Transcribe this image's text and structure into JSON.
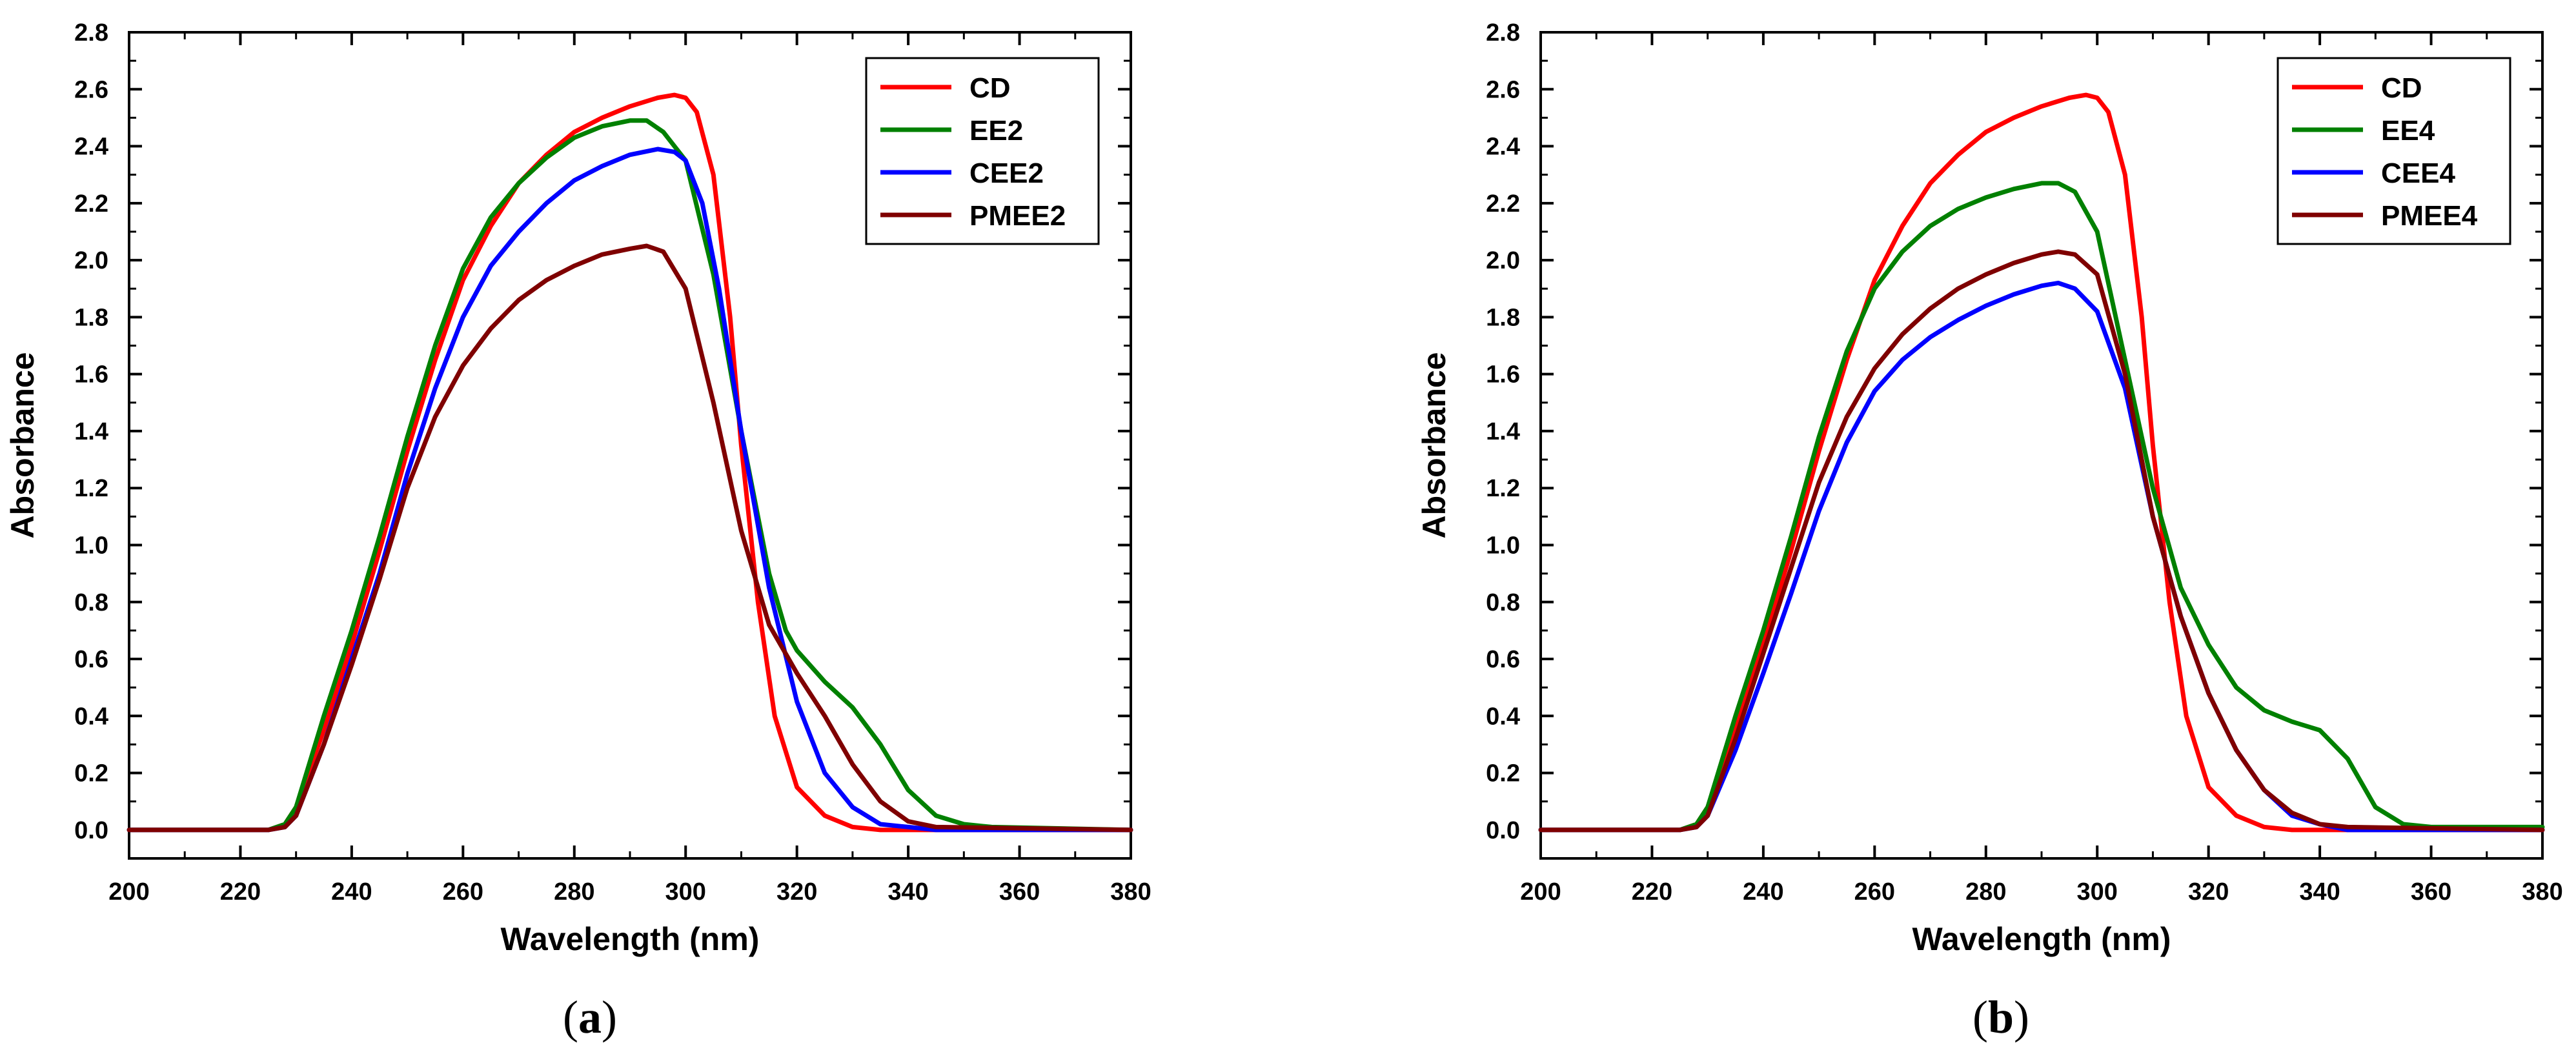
{
  "chart_data": [
    {
      "type": "line",
      "caption": "(a)",
      "caption_letter": "a",
      "xlabel": "Wavelength (nm)",
      "ylabel": "Absorbance",
      "xlim": [
        200,
        380
      ],
      "ylim": [
        -0.1,
        2.8
      ],
      "xticks": [
        200,
        220,
        240,
        260,
        280,
        300,
        320,
        340,
        360,
        380
      ],
      "yticks": [
        0.0,
        0.2,
        0.4,
        0.6,
        0.8,
        1.0,
        1.2,
        1.4,
        1.6,
        1.8,
        2.0,
        2.2,
        2.4,
        2.6,
        2.8
      ],
      "legend_position": "top-right",
      "series": [
        {
          "name": "CD",
          "color": "#ff0000",
          "x": [
            200,
            225,
            228,
            230,
            235,
            240,
            245,
            250,
            255,
            260,
            265,
            270,
            275,
            280,
            285,
            290,
            295,
            298,
            300,
            302,
            305,
            308,
            310,
            313,
            316,
            320,
            325,
            330,
            335,
            340,
            345,
            350,
            380
          ],
          "y": [
            0,
            0,
            0.02,
            0.08,
            0.35,
            0.65,
            0.98,
            1.33,
            1.65,
            1.93,
            2.12,
            2.27,
            2.37,
            2.45,
            2.5,
            2.54,
            2.57,
            2.58,
            2.57,
            2.52,
            2.3,
            1.8,
            1.35,
            0.8,
            0.4,
            0.15,
            0.05,
            0.01,
            0,
            0,
            0,
            0,
            0
          ]
        },
        {
          "name": "EE2",
          "color": "#008000",
          "x": [
            200,
            225,
            228,
            230,
            235,
            240,
            245,
            250,
            255,
            260,
            265,
            270,
            275,
            280,
            285,
            290,
            293,
            296,
            300,
            305,
            310,
            315,
            318,
            320,
            325,
            330,
            335,
            340,
            345,
            350,
            355,
            380
          ],
          "y": [
            0,
            0,
            0.02,
            0.08,
            0.4,
            0.7,
            1.03,
            1.38,
            1.7,
            1.97,
            2.15,
            2.27,
            2.36,
            2.43,
            2.47,
            2.49,
            2.49,
            2.45,
            2.35,
            1.95,
            1.4,
            0.9,
            0.7,
            0.63,
            0.52,
            0.43,
            0.3,
            0.14,
            0.05,
            0.02,
            0.01,
            0
          ]
        },
        {
          "name": "CEE2",
          "color": "#0000ff",
          "x": [
            200,
            225,
            228,
            230,
            235,
            240,
            245,
            250,
            255,
            260,
            265,
            270,
            275,
            280,
            285,
            290,
            295,
            298,
            300,
            303,
            306,
            310,
            315,
            320,
            325,
            330,
            335,
            340,
            345,
            380
          ],
          "y": [
            0,
            0,
            0.01,
            0.05,
            0.3,
            0.6,
            0.9,
            1.25,
            1.55,
            1.8,
            1.98,
            2.1,
            2.2,
            2.28,
            2.33,
            2.37,
            2.39,
            2.38,
            2.35,
            2.2,
            1.9,
            1.4,
            0.85,
            0.45,
            0.2,
            0.08,
            0.02,
            0.01,
            0,
            0
          ]
        },
        {
          "name": "PMEE2",
          "color": "#7f0000",
          "x": [
            200,
            225,
            228,
            230,
            235,
            240,
            245,
            250,
            255,
            260,
            265,
            270,
            275,
            280,
            285,
            290,
            293,
            296,
            300,
            305,
            310,
            315,
            320,
            325,
            330,
            335,
            340,
            345,
            380
          ],
          "y": [
            0,
            0,
            0.01,
            0.05,
            0.3,
            0.58,
            0.88,
            1.2,
            1.45,
            1.63,
            1.76,
            1.86,
            1.93,
            1.98,
            2.02,
            2.04,
            2.05,
            2.03,
            1.9,
            1.5,
            1.05,
            0.72,
            0.55,
            0.4,
            0.23,
            0.1,
            0.03,
            0.01,
            0
          ]
        }
      ]
    },
    {
      "type": "line",
      "caption": "(b)",
      "caption_letter": "b",
      "xlabel": "Wavelength (nm)",
      "ylabel": "Absorbance",
      "xlim": [
        200,
        380
      ],
      "ylim": [
        -0.1,
        2.8
      ],
      "xticks": [
        200,
        220,
        240,
        260,
        280,
        300,
        320,
        340,
        360,
        380
      ],
      "yticks": [
        0.0,
        0.2,
        0.4,
        0.6,
        0.8,
        1.0,
        1.2,
        1.4,
        1.6,
        1.8,
        2.0,
        2.2,
        2.4,
        2.6,
        2.8
      ],
      "legend_position": "top-right",
      "series": [
        {
          "name": "CD",
          "color": "#ff0000",
          "x": [
            200,
            225,
            228,
            230,
            235,
            240,
            245,
            250,
            255,
            260,
            265,
            270,
            275,
            280,
            285,
            290,
            295,
            298,
            300,
            302,
            305,
            308,
            310,
            313,
            316,
            320,
            325,
            330,
            335,
            340,
            345,
            350,
            380
          ],
          "y": [
            0,
            0,
            0.02,
            0.08,
            0.35,
            0.65,
            0.98,
            1.33,
            1.65,
            1.93,
            2.12,
            2.27,
            2.37,
            2.45,
            2.5,
            2.54,
            2.57,
            2.58,
            2.57,
            2.52,
            2.3,
            1.8,
            1.35,
            0.8,
            0.4,
            0.15,
            0.05,
            0.01,
            0,
            0,
            0,
            0,
            0
          ]
        },
        {
          "name": "EE4",
          "color": "#008000",
          "x": [
            200,
            225,
            228,
            230,
            235,
            240,
            245,
            250,
            255,
            260,
            265,
            270,
            275,
            280,
            285,
            290,
            293,
            296,
            300,
            305,
            310,
            315,
            320,
            325,
            330,
            335,
            340,
            345,
            350,
            355,
            360,
            380
          ],
          "y": [
            0,
            0,
            0.02,
            0.08,
            0.4,
            0.7,
            1.03,
            1.38,
            1.68,
            1.9,
            2.03,
            2.12,
            2.18,
            2.22,
            2.25,
            2.27,
            2.27,
            2.24,
            2.1,
            1.65,
            1.2,
            0.85,
            0.65,
            0.5,
            0.42,
            0.38,
            0.35,
            0.25,
            0.08,
            0.02,
            0.01,
            0.01
          ]
        },
        {
          "name": "CEE4",
          "color": "#0000ff",
          "x": [
            200,
            225,
            228,
            230,
            235,
            240,
            245,
            250,
            255,
            260,
            265,
            270,
            275,
            280,
            285,
            290,
            293,
            296,
            300,
            305,
            310,
            315,
            320,
            325,
            330,
            335,
            340,
            345,
            380
          ],
          "y": [
            0,
            0,
            0.01,
            0.05,
            0.28,
            0.55,
            0.83,
            1.12,
            1.36,
            1.54,
            1.65,
            1.73,
            1.79,
            1.84,
            1.88,
            1.91,
            1.92,
            1.9,
            1.82,
            1.55,
            1.1,
            0.75,
            0.48,
            0.28,
            0.14,
            0.05,
            0.02,
            0,
            0
          ]
        },
        {
          "name": "PMEE4",
          "color": "#7f0000",
          "x": [
            200,
            225,
            228,
            230,
            235,
            240,
            245,
            250,
            255,
            260,
            265,
            270,
            275,
            280,
            285,
            290,
            293,
            296,
            300,
            305,
            310,
            315,
            320,
            325,
            330,
            335,
            340,
            345,
            380
          ],
          "y": [
            0,
            0,
            0.01,
            0.05,
            0.32,
            0.62,
            0.92,
            1.22,
            1.45,
            1.62,
            1.74,
            1.83,
            1.9,
            1.95,
            1.99,
            2.02,
            2.03,
            2.02,
            1.95,
            1.6,
            1.1,
            0.75,
            0.48,
            0.28,
            0.14,
            0.06,
            0.02,
            0.01,
            0
          ]
        }
      ]
    }
  ]
}
